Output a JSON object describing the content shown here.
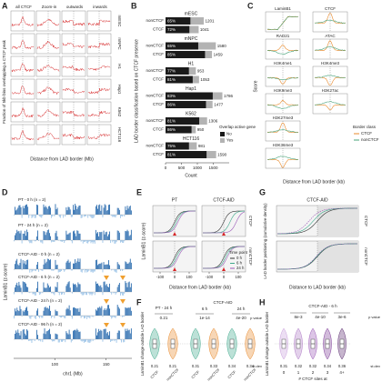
{
  "panels": {
    "a": {
      "letter": "A",
      "columns": [
        "all CTCF",
        "Zoom-in",
        "outwards",
        "inwards"
      ],
      "rows": [
        "mESC",
        "mNPC",
        "H1",
        "Hap1",
        "K562",
        "HCT116"
      ],
      "y_label": "Fraction of 5kb bins overlapping a CTCF peak",
      "x_label": "Distance from LAD border (Mb)"
    },
    "b": {
      "letter": "B",
      "chart_data": {
        "type": "bar",
        "title": "LAD border classification based on CTCF presence",
        "groups": [
          "mESC",
          "mNPC",
          "H1",
          "Hap1",
          "K562",
          "HCT116"
        ],
        "categories": [
          "nonCTCF",
          "CTCF"
        ],
        "totals": [
          [
            1201,
            1041
          ],
          [
            1580,
            1459
          ],
          [
            953,
            1053
          ],
          [
            1786,
            1477
          ],
          [
            1306,
            950
          ],
          [
            981,
            1590
          ]
        ],
        "no_share": [
          [
            65,
            72
          ],
          [
            65,
            85
          ],
          [
            77,
            81
          ],
          [
            83,
            86
          ],
          [
            81,
            86
          ],
          [
            75,
            81
          ]
        ],
        "no_share_labels": [
          [
            "65%",
            "72%"
          ],
          [
            "65%",
            "85%"
          ],
          [
            "77%",
            "81%"
          ],
          [
            "83%",
            "86%"
          ],
          [
            "81%",
            "86%"
          ],
          [
            "75%",
            "81%"
          ]
        ],
        "xlim": [
          0,
          2000
        ],
        "xticks": [
          0,
          500,
          1000,
          1500
        ],
        "x_label": "Count",
        "legend_title": "Overlap active gene",
        "series": [
          {
            "name": "No",
            "color": "#1a1a1a"
          },
          {
            "name": "Yes",
            "color": "#b3b3b3"
          }
        ]
      }
    },
    "c": {
      "letter": "C",
      "tracks": [
        "LaminB1",
        "CTCF",
        "RAD21",
        "ATAC",
        "H3K4me1",
        "H3K4me3",
        "H3K9me3",
        "H3K27ac",
        "H3K27me3",
        "H3K36me3"
      ],
      "y_label": "Score",
      "x_label": "Distance from LAD border (kb)",
      "legend_title": "Border class",
      "legend": [
        {
          "name": "CTCF",
          "color": "#e8892b"
        },
        {
          "name": "nonCTCF",
          "color": "#4aa37a"
        }
      ]
    },
    "d": {
      "letter": "D",
      "tracks": [
        "PT - 0 h (n = 2)",
        "PT - 24 h (n = 2)",
        "CTCF-AID - 0 h (n = 2)",
        "CTCF-AID - 6 h (n = 2)",
        "CTCF-AID - 24 h (n = 2)",
        "CTCF-AID - 96 h (n = 2)"
      ],
      "y_label": "LaminB1 (z-score)",
      "x_label": "chr1 (Mb)",
      "xlim": [
        60,
        175
      ],
      "xticks": [
        100,
        150
      ]
    },
    "e": {
      "letter": "E",
      "columns": [
        "PT",
        "CTCF-AID"
      ],
      "rows": [
        "CTCF",
        "nonCTCF"
      ],
      "y_label": "LaminB1 (z-score)",
      "x_label": "Distance from LAD border (kb)",
      "xlim": [
        -150,
        150
      ],
      "xticks": [
        -100,
        0,
        100
      ],
      "legend_title": "Time point",
      "legend": [
        {
          "name": "0 h",
          "color": "#333333"
        },
        {
          "name": "6 h",
          "color": "#3fa98c"
        },
        {
          "name": "24 h",
          "color": "#9b59b6"
        }
      ]
    },
    "g": {
      "letter": "G",
      "column": "CTCF-AID",
      "rows": [
        "CTCF",
        "nonCTCF"
      ],
      "y_label": "LAD border positioning (cumulative density)",
      "x_label": "Distance to LAD border (kb)"
    },
    "f": {
      "letter": "F",
      "groups": [
        "PT - 24 h",
        "CTCF-AID"
      ],
      "subgroups": [
        "6 h",
        "24 h"
      ],
      "p_label": "p value",
      "p_values": [
        "0.21",
        "1e-14",
        "4e-20"
      ],
      "categories": [
        "CTCF",
        "nonCTCF",
        "CTCF",
        "nonCTCF",
        "CTCF",
        "nonCTCF"
      ],
      "sd_label": "st.dev",
      "sd": [
        0.21,
        0.21,
        0.31,
        0.33,
        0.34,
        0.34
      ],
      "y_label": "LaminB1 change outside LAD border"
    },
    "h": {
      "letter": "H",
      "title": "CTCF-AID - 6 h",
      "p_label": "p value",
      "p_values": [
        "8e-3",
        "4e-10",
        "3e-6"
      ],
      "categories": [
        "0",
        "1",
        "2",
        "3",
        "4+"
      ],
      "sd_label": "st.dev",
      "sd": [
        0.31,
        0.32,
        0.32,
        0.34,
        0.36
      ],
      "x_label": "# CTCF sites at",
      "y_label": "LaminB1 change outside LAD border"
    }
  }
}
